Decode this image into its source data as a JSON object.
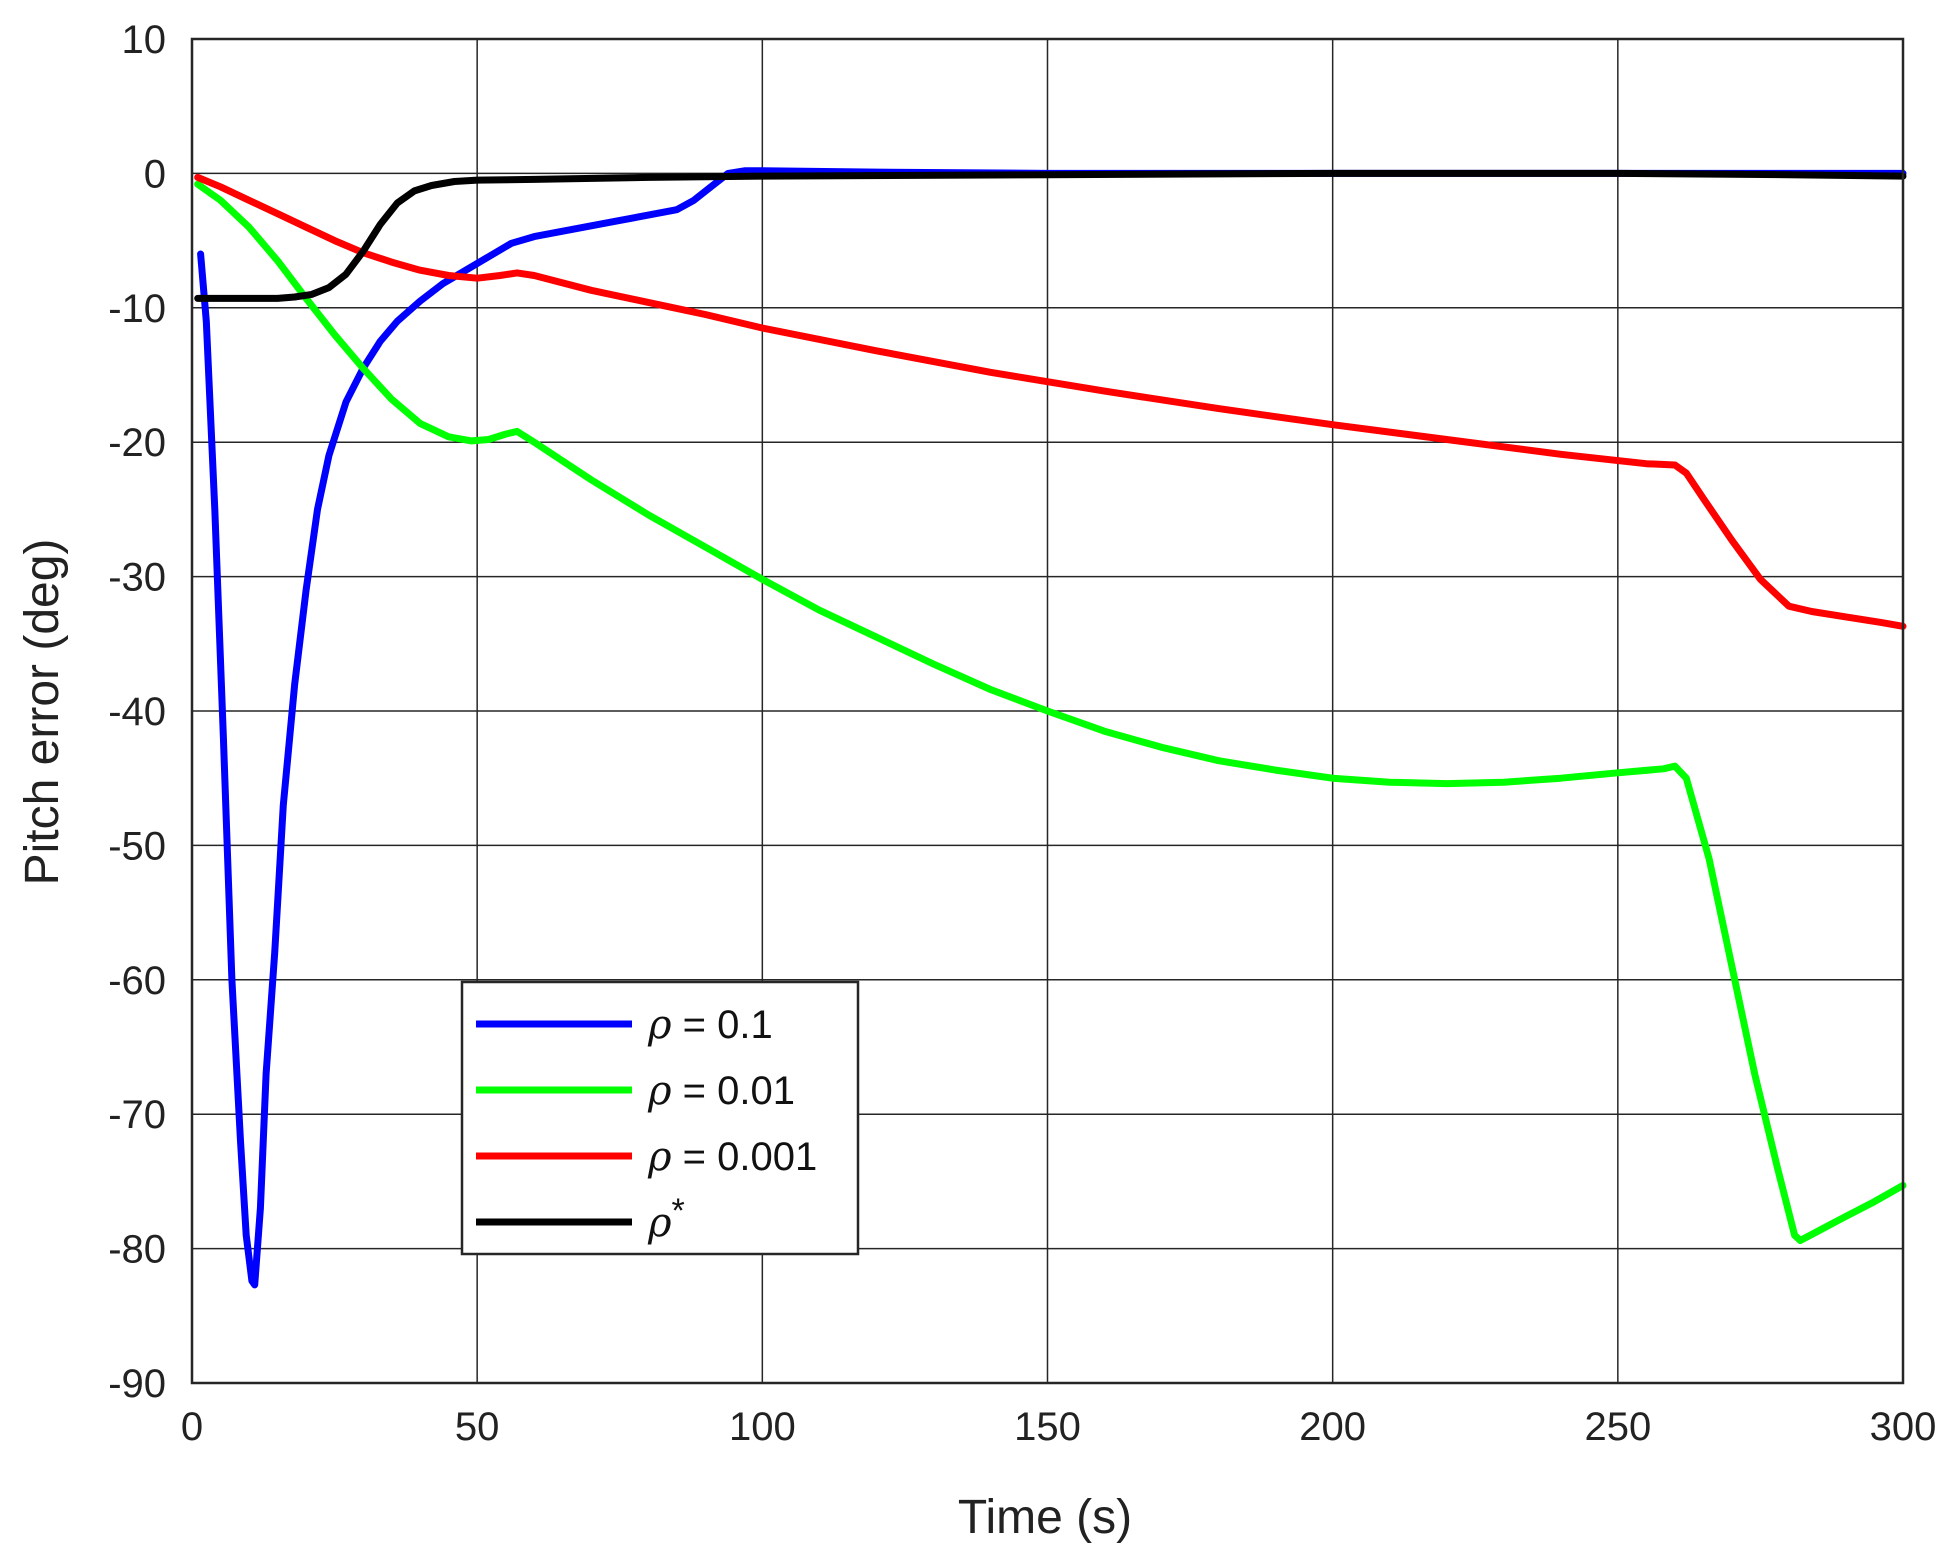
{
  "chart_data": {
    "type": "line",
    "title": "",
    "xlabel": "Time  (s)",
    "ylabel": "Pitch error (deg)",
    "xlim": [
      0,
      300
    ],
    "ylim": [
      -90,
      10
    ],
    "xticks": [
      0,
      50,
      100,
      150,
      200,
      250,
      300
    ],
    "yticks": [
      10,
      0,
      -10,
      -20,
      -30,
      -40,
      -50,
      -60,
      -70,
      -80,
      -90
    ],
    "grid": true,
    "legend_position": "lower-left",
    "series": [
      {
        "name": "ρ = 0.1",
        "legend_symbol": "ρ",
        "legend_rest": " = 0.1",
        "color": "#0000ff",
        "points": [
          [
            1.5,
            -6
          ],
          [
            2.5,
            -11
          ],
          [
            4,
            -25
          ],
          [
            5.5,
            -42
          ],
          [
            7,
            -60
          ],
          [
            8.5,
            -72
          ],
          [
            9.5,
            -79
          ],
          [
            10.5,
            -82.4
          ],
          [
            11,
            -82.7
          ],
          [
            12,
            -77
          ],
          [
            13,
            -67
          ],
          [
            14.5,
            -58
          ],
          [
            16,
            -47
          ],
          [
            18,
            -38
          ],
          [
            20,
            -31
          ],
          [
            22,
            -25
          ],
          [
            24,
            -21
          ],
          [
            27,
            -17
          ],
          [
            30,
            -14.5
          ],
          [
            33,
            -12.5
          ],
          [
            36,
            -11
          ],
          [
            40,
            -9.5
          ],
          [
            44,
            -8.2
          ],
          [
            48,
            -7.2
          ],
          [
            52,
            -6.2
          ],
          [
            56,
            -5.2
          ],
          [
            60,
            -4.7
          ],
          [
            65,
            -4.3
          ],
          [
            70,
            -3.9
          ],
          [
            75,
            -3.5
          ],
          [
            80,
            -3.1
          ],
          [
            85,
            -2.7
          ],
          [
            88,
            -2.0
          ],
          [
            91,
            -1.0
          ],
          [
            94,
            0
          ],
          [
            97,
            0.2
          ],
          [
            100,
            0.2
          ],
          [
            120,
            0.1
          ],
          [
            150,
            0
          ],
          [
            200,
            0
          ],
          [
            250,
            0
          ],
          [
            280,
            0
          ],
          [
            300,
            0
          ]
        ]
      },
      {
        "name": "ρ = 0.01",
        "legend_symbol": "ρ",
        "legend_rest": " = 0.01",
        "color": "#00ff00",
        "points": [
          [
            1,
            -0.8
          ],
          [
            5,
            -2
          ],
          [
            10,
            -4
          ],
          [
            15,
            -6.5
          ],
          [
            20,
            -9.3
          ],
          [
            25,
            -12
          ],
          [
            30,
            -14.5
          ],
          [
            35,
            -16.8
          ],
          [
            40,
            -18.6
          ],
          [
            45,
            -19.6
          ],
          [
            49,
            -19.9
          ],
          [
            52,
            -19.8
          ],
          [
            55,
            -19.4
          ],
          [
            57,
            -19.2
          ],
          [
            60,
            -20
          ],
          [
            70,
            -22.8
          ],
          [
            80,
            -25.4
          ],
          [
            90,
            -27.8
          ],
          [
            100,
            -30.2
          ],
          [
            110,
            -32.5
          ],
          [
            120,
            -34.5
          ],
          [
            130,
            -36.5
          ],
          [
            140,
            -38.4
          ],
          [
            150,
            -40
          ],
          [
            160,
            -41.5
          ],
          [
            170,
            -42.7
          ],
          [
            180,
            -43.7
          ],
          [
            190,
            -44.4
          ],
          [
            200,
            -45
          ],
          [
            210,
            -45.3
          ],
          [
            220,
            -45.4
          ],
          [
            230,
            -45.3
          ],
          [
            240,
            -45
          ],
          [
            250,
            -44.6
          ],
          [
            258,
            -44.3
          ],
          [
            260,
            -44.1
          ],
          [
            262,
            -45
          ],
          [
            266,
            -51
          ],
          [
            270,
            -59
          ],
          [
            274,
            -67
          ],
          [
            278,
            -74
          ],
          [
            281,
            -79
          ],
          [
            282,
            -79.4
          ],
          [
            286,
            -78.5
          ],
          [
            290,
            -77.6
          ],
          [
            295,
            -76.5
          ],
          [
            300,
            -75.3
          ]
        ]
      },
      {
        "name": "ρ = 0.001",
        "legend_symbol": "ρ",
        "legend_rest": " = 0.001",
        "color": "#ff0000",
        "points": [
          [
            1,
            -0.3
          ],
          [
            5,
            -1
          ],
          [
            10,
            -2
          ],
          [
            15,
            -3
          ],
          [
            20,
            -4
          ],
          [
            25,
            -5
          ],
          [
            30,
            -5.9
          ],
          [
            35,
            -6.6
          ],
          [
            40,
            -7.2
          ],
          [
            45,
            -7.6
          ],
          [
            50,
            -7.8
          ],
          [
            54,
            -7.6
          ],
          [
            57,
            -7.4
          ],
          [
            60,
            -7.6
          ],
          [
            70,
            -8.7
          ],
          [
            80,
            -9.6
          ],
          [
            90,
            -10.5
          ],
          [
            100,
            -11.5
          ],
          [
            120,
            -13.2
          ],
          [
            140,
            -14.8
          ],
          [
            160,
            -16.2
          ],
          [
            180,
            -17.5
          ],
          [
            200,
            -18.7
          ],
          [
            220,
            -19.8
          ],
          [
            240,
            -20.9
          ],
          [
            255,
            -21.6
          ],
          [
            260,
            -21.7
          ],
          [
            262,
            -22.3
          ],
          [
            265,
            -24.2
          ],
          [
            270,
            -27.3
          ],
          [
            275,
            -30.2
          ],
          [
            280,
            -32.2
          ],
          [
            284,
            -32.6
          ],
          [
            290,
            -33
          ],
          [
            296,
            -33.4
          ],
          [
            300,
            -33.7
          ]
        ]
      },
      {
        "name": "ρ*",
        "legend_symbol": "ρ",
        "legend_rest": "*",
        "color": "#000000",
        "points": [
          [
            1,
            -9.3
          ],
          [
            5,
            -9.3
          ],
          [
            10,
            -9.3
          ],
          [
            15,
            -9.3
          ],
          [
            18,
            -9.2
          ],
          [
            21,
            -9
          ],
          [
            24,
            -8.5
          ],
          [
            27,
            -7.5
          ],
          [
            30,
            -5.8
          ],
          [
            33,
            -3.8
          ],
          [
            36,
            -2.2
          ],
          [
            39,
            -1.3
          ],
          [
            42,
            -0.9
          ],
          [
            46,
            -0.6
          ],
          [
            50,
            -0.5
          ],
          [
            60,
            -0.45
          ],
          [
            80,
            -0.3
          ],
          [
            100,
            -0.2
          ],
          [
            150,
            -0.1
          ],
          [
            200,
            0
          ],
          [
            250,
            0
          ],
          [
            280,
            -0.1
          ],
          [
            300,
            -0.2
          ]
        ]
      }
    ]
  }
}
